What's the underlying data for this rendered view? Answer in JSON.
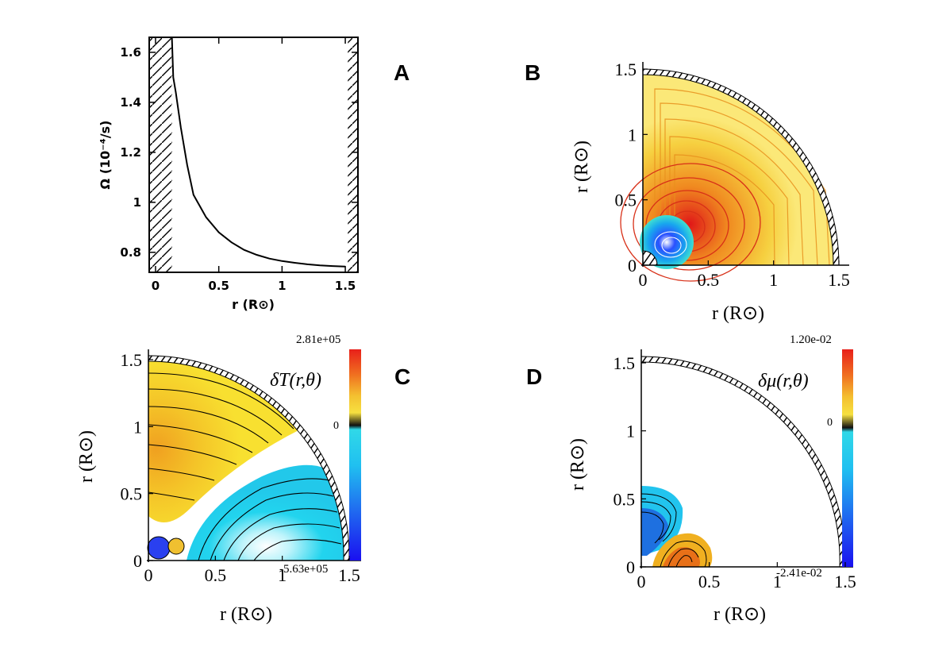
{
  "figure": {
    "panels": [
      {
        "id": "A",
        "label": "A"
      },
      {
        "id": "B",
        "label": "B"
      },
      {
        "id": "C",
        "label": "C"
      },
      {
        "id": "D",
        "label": "D"
      }
    ]
  },
  "chart_data": [
    {
      "panel": "A",
      "type": "line",
      "title": "",
      "xlabel": "r (R⊙)",
      "ylabel": "Ω (10⁻⁴/s)",
      "xlim": [
        -0.05,
        1.6
      ],
      "ylim": [
        0.72,
        1.66
      ],
      "xticks": [
        "0",
        "0.5",
        "1",
        "1.5"
      ],
      "xtick_values": [
        0,
        0.5,
        1,
        1.5
      ],
      "yticks": [
        "0.8",
        "1",
        "1.2",
        "1.4",
        "1.6"
      ],
      "ytick_values": [
        0.8,
        1.0,
        1.2,
        1.4,
        1.6
      ],
      "hatched_regions": [
        [
          -0.05,
          0.13
        ],
        [
          1.52,
          1.6
        ]
      ],
      "series": [
        {
          "x": [
            0.13,
            0.14,
            0.16,
            0.2,
            0.25,
            0.3,
            0.4,
            0.5,
            0.6,
            0.7,
            0.8,
            0.9,
            1.0,
            1.1,
            1.2,
            1.3,
            1.4,
            1.5
          ],
          "y": [
            1.65,
            1.5,
            1.44,
            1.3,
            1.15,
            1.03,
            0.94,
            0.88,
            0.84,
            0.81,
            0.79,
            0.775,
            0.765,
            0.758,
            0.752,
            0.748,
            0.745,
            0.743
          ]
        }
      ]
    },
    {
      "panel": "B",
      "type": "contour",
      "title": "",
      "xlabel": "r  (R⊙)",
      "ylabel": "r  (R⊙)",
      "xlim": [
        0,
        1.55
      ],
      "ylim": [
        0,
        1.55
      ],
      "xticks": [
        "0",
        "0.5",
        "1",
        "1.5"
      ],
      "xtick_values": [
        0,
        0.5,
        1,
        1.5
      ],
      "yticks": [
        "0",
        "0.5",
        "1",
        "1.5"
      ],
      "ytick_values": [
        0,
        0.5,
        1,
        1.5
      ],
      "centers": [
        {
          "x": 0.37,
          "y": 0.32,
          "kind": "maximum",
          "color": "#e01818"
        },
        {
          "x": 0.2,
          "y": 0.15,
          "kind": "minimum",
          "color": "#1a3cf0"
        }
      ]
    },
    {
      "panel": "C",
      "type": "contour",
      "title": "δT(r,θ)",
      "xlabel": "r  (R⊙)",
      "ylabel": "r  (R⊙)",
      "xlim": [
        0,
        1.55
      ],
      "ylim": [
        0,
        1.55
      ],
      "xticks": [
        "0",
        "0.5",
        "1",
        "1.5"
      ],
      "xtick_values": [
        0,
        0.5,
        1,
        1.5
      ],
      "yticks": [
        "0",
        "0.5",
        "1",
        "1.5"
      ],
      "ytick_values": [
        0,
        0.5,
        1,
        1.5
      ],
      "colorbar": {
        "max": "2.81e+05",
        "min": "-5.63e+05",
        "zero": "0"
      },
      "lobes": [
        {
          "x": 0.0,
          "y": 0.68,
          "sign": "positive",
          "color": "#f0b820"
        },
        {
          "x": 0.62,
          "y": 0.08,
          "sign": "negative",
          "color": "#22d4ee"
        }
      ]
    },
    {
      "panel": "D",
      "type": "contour",
      "title": "δμ(r,θ)",
      "xlabel": "r  (R⊙)",
      "ylabel": "r  (R⊙)",
      "xlim": [
        0,
        1.55
      ],
      "ylim": [
        0,
        1.55
      ],
      "xticks": [
        "0",
        "0.5",
        "1",
        "1.5"
      ],
      "xtick_values": [
        0,
        0.5,
        1,
        1.5
      ],
      "yticks": [
        "0",
        "0.5",
        "1",
        "1.5"
      ],
      "ytick_values": [
        0,
        0.5,
        1,
        1.5
      ],
      "colorbar": {
        "max": "1.20e-02",
        "min": "-2.41e-02",
        "zero": "0"
      },
      "lobes": [
        {
          "x": 0.08,
          "y": 0.35,
          "sign": "negative",
          "color": "#22c4ee"
        },
        {
          "x": 0.3,
          "y": 0.08,
          "sign": "positive",
          "color": "#f0a020"
        }
      ]
    }
  ]
}
